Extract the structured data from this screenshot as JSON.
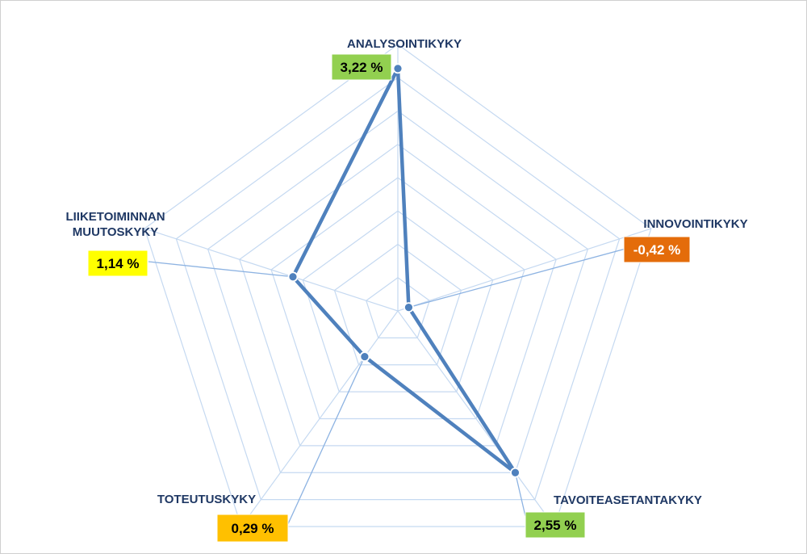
{
  "chart_data": {
    "type": "radar",
    "title": "",
    "categories": [
      "ANALYSOINTIKYKY",
      "INNOVOINTIKYKY",
      "TAVOITEASETANTAKYKY",
      "TOTEUTUSKYKY",
      "LIIKETOIMINNAN MUUTOSKYKY"
    ],
    "category_lines": [
      [
        "ANALYSOINTIKYKY"
      ],
      [
        "INNOVOINTIKYKY"
      ],
      [
        "TAVOITEASETANTAKYKY"
      ],
      [
        "TOTEUTUSKYKY"
      ],
      [
        "LIIKETOIMINNAN",
        "MUUTOSKYKY"
      ]
    ],
    "values": [
      3.22,
      -0.42,
      2.55,
      0.29,
      1.14
    ],
    "data_labels": [
      "3,22 %",
      "-0,42 %",
      "2,55 %",
      "0,29 %",
      "1,14 %"
    ],
    "label_colors": [
      "#92d050",
      "#e46c0a",
      "#92d050",
      "#ffc000",
      "#ffff00"
    ],
    "rmin": -0.6,
    "rmax": 3.6,
    "rings": 8,
    "grid": true,
    "legend": "none",
    "series_color": "#4f81bd",
    "grid_color": "#c5d9f1",
    "label_text_color": "#1f3864"
  }
}
